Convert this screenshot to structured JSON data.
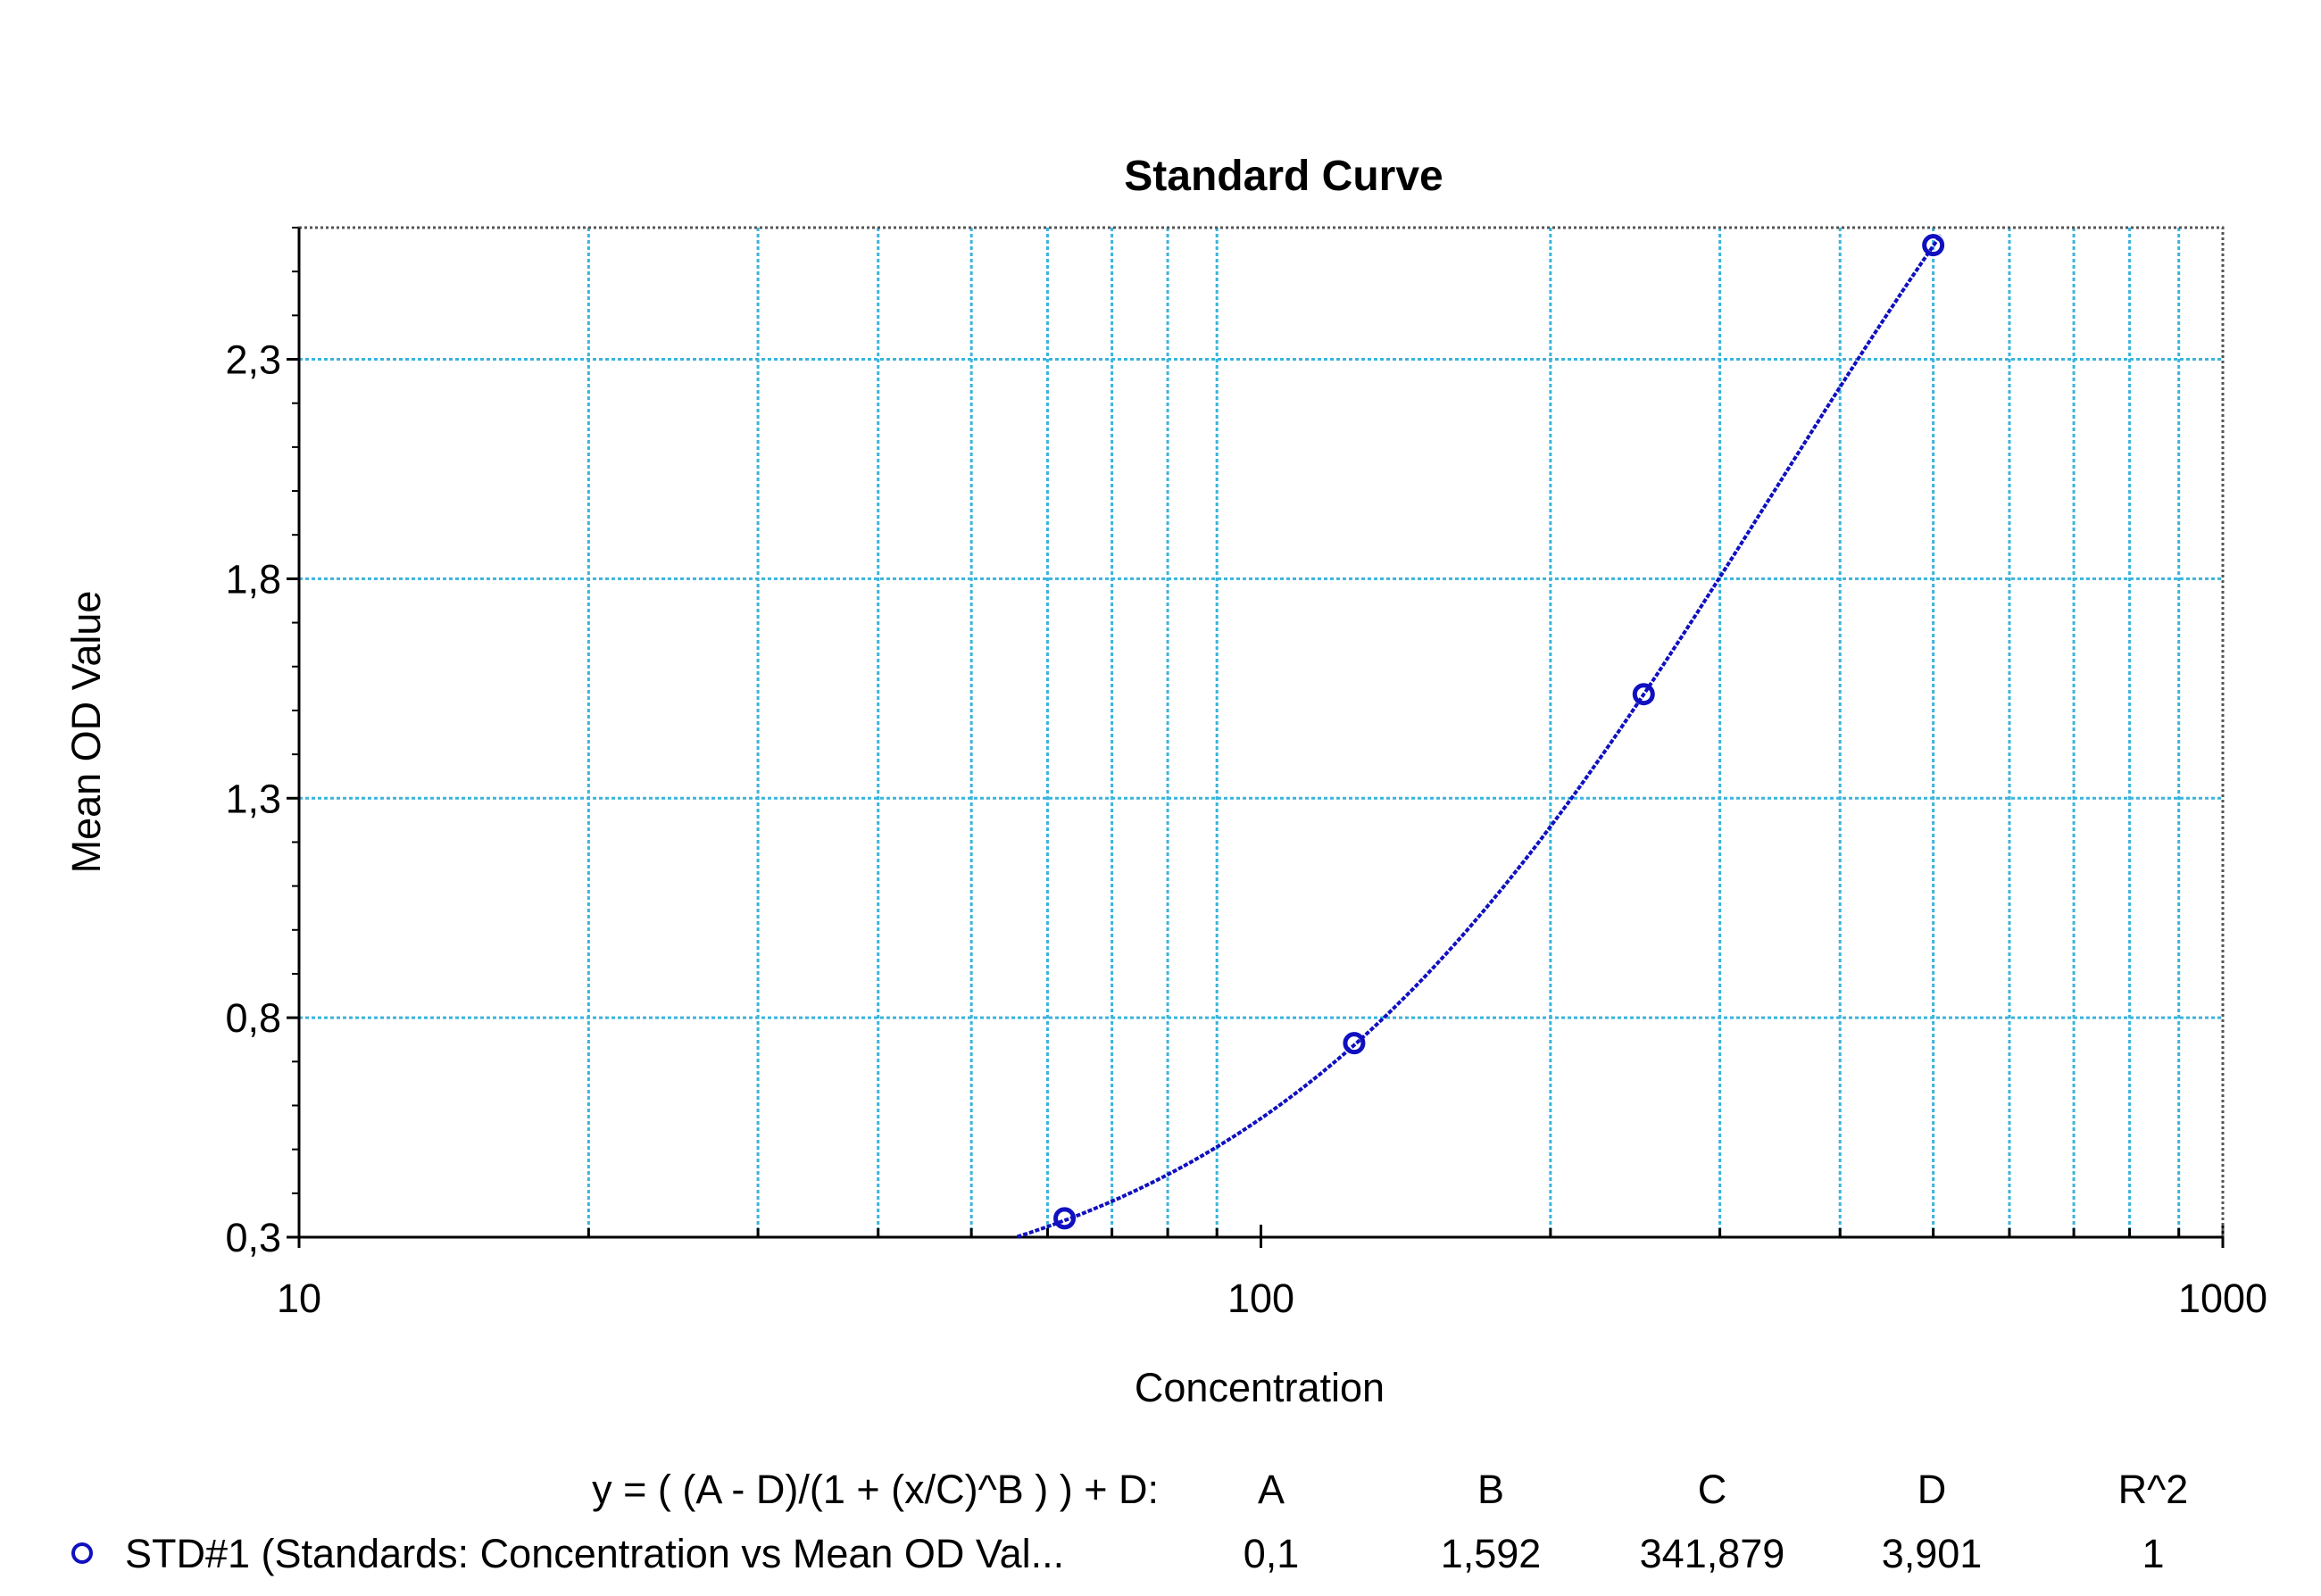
{
  "chart_data": {
    "type": "scatter",
    "title": "Standard Curve",
    "xlabel": "Concentration",
    "ylabel": "Mean OD Value",
    "x_scale": "log",
    "xlim": [
      10,
      1000
    ],
    "ylim": [
      0.3,
      2.6
    ],
    "x_ticks": [
      10,
      100,
      1000
    ],
    "x_tick_labels": [
      "10",
      "100",
      "1000"
    ],
    "y_ticks": [
      0.3,
      0.8,
      1.3,
      1.8,
      2.3
    ],
    "y_tick_labels": [
      "0,3",
      "0,8",
      "1,3",
      "1,8",
      "2,3"
    ],
    "grid": true,
    "series": [
      {
        "name": "STD#1 (Standards: Concentration vs Mean OD Val...",
        "x": [
          62.5,
          125,
          250,
          500
        ],
        "y": [
          0.343,
          0.742,
          1.537,
          2.56
        ],
        "marker": "circle"
      }
    ],
    "fit": {
      "equation": "y = ( (A - D)/(1 + (x/C)^B ) ) + D:",
      "params": [
        {
          "name": "A",
          "label": "0,1",
          "value": 0.1
        },
        {
          "name": "B",
          "label": "1,592",
          "value": 1.592
        },
        {
          "name": "C",
          "label": "341,879",
          "value": 341.879
        },
        {
          "name": "D",
          "label": "3,901",
          "value": 3.901
        },
        {
          "name": "R^2",
          "label": "1",
          "value": 1
        }
      ]
    },
    "colors": {
      "series": "#1010c0",
      "grid": "#3ab4dc",
      "axis": "#000000"
    },
    "legend_position": "bottom"
  }
}
